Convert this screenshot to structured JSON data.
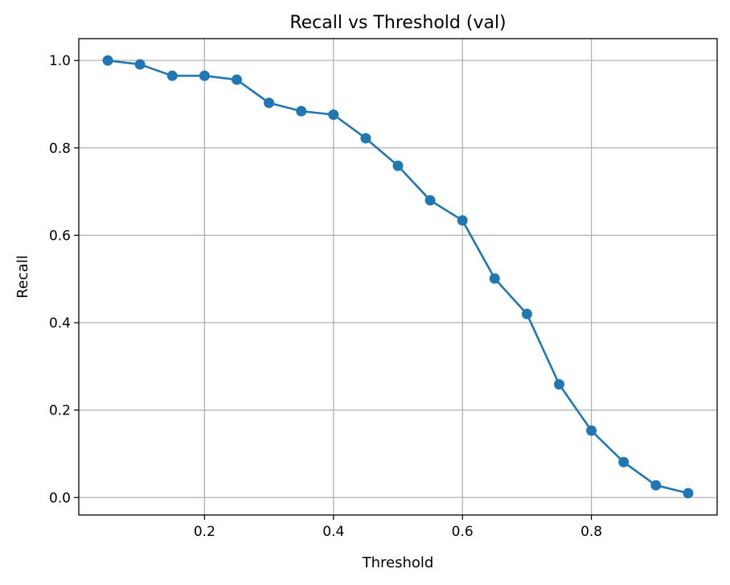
{
  "chart_data": {
    "type": "line",
    "title": "Recall vs Threshold (val)",
    "xlabel": "Threshold",
    "ylabel": "Recall",
    "xlim": [
      0.005,
      0.995
    ],
    "ylim": [
      -0.04,
      1.05
    ],
    "xticks": [
      0.2,
      0.4,
      0.6,
      0.8
    ],
    "xtick_labels": [
      "0.2",
      "0.4",
      "0.6",
      "0.8"
    ],
    "yticks": [
      0.0,
      0.2,
      0.4,
      0.6,
      0.8,
      1.0
    ],
    "ytick_labels": [
      "0.0",
      "0.2",
      "0.4",
      "0.6",
      "0.8",
      "1.0"
    ],
    "grid": true,
    "marker": "circle",
    "series": [
      {
        "color": "#1f77b4",
        "x": [
          0.05,
          0.1,
          0.15,
          0.2,
          0.25,
          0.3,
          0.35,
          0.4,
          0.45,
          0.5,
          0.55,
          0.6,
          0.65,
          0.7,
          0.75,
          0.8,
          0.85,
          0.9,
          0.95
        ],
        "y": [
          1.0,
          0.991,
          0.965,
          0.965,
          0.956,
          0.903,
          0.884,
          0.876,
          0.822,
          0.759,
          0.68,
          0.634,
          0.501,
          0.42,
          0.259,
          0.153,
          0.081,
          0.028,
          0.01
        ]
      }
    ]
  }
}
